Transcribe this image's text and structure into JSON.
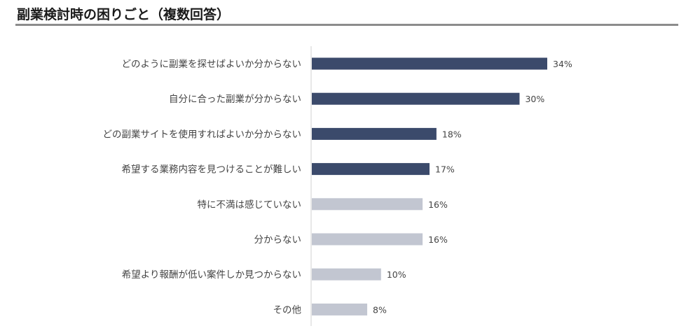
{
  "title": "副業検討時の困りごと（複数回答）",
  "chart_data": {
    "type": "bar",
    "orientation": "horizontal",
    "title": "副業検討時の困りごと（複数回答）",
    "categories": [
      "どのように副業を探せばよいか分からない",
      "自分に合った副業が分からない",
      "どの副業サイトを使用すればよいか分からない",
      "希望する業務内容を見つけることが難しい",
      "特に不満は感じていない",
      "分からない",
      "希望より報酬が低い案件しか見つからない",
      "その他"
    ],
    "values": [
      34,
      30,
      18,
      17,
      16,
      16,
      10,
      8
    ],
    "value_labels": [
      "34%",
      "30%",
      "18%",
      "17%",
      "16%",
      "16%",
      "10%",
      "8%"
    ],
    "unit": "%",
    "colors": [
      "#3b4a6b",
      "#3b4a6b",
      "#3b4a6b",
      "#3b4a6b",
      "#c2c6d1",
      "#c2c6d1",
      "#c2c6d1",
      "#c2c6d1"
    ],
    "axis_color": "#d0d0d0",
    "grid": false,
    "legend": false
  }
}
